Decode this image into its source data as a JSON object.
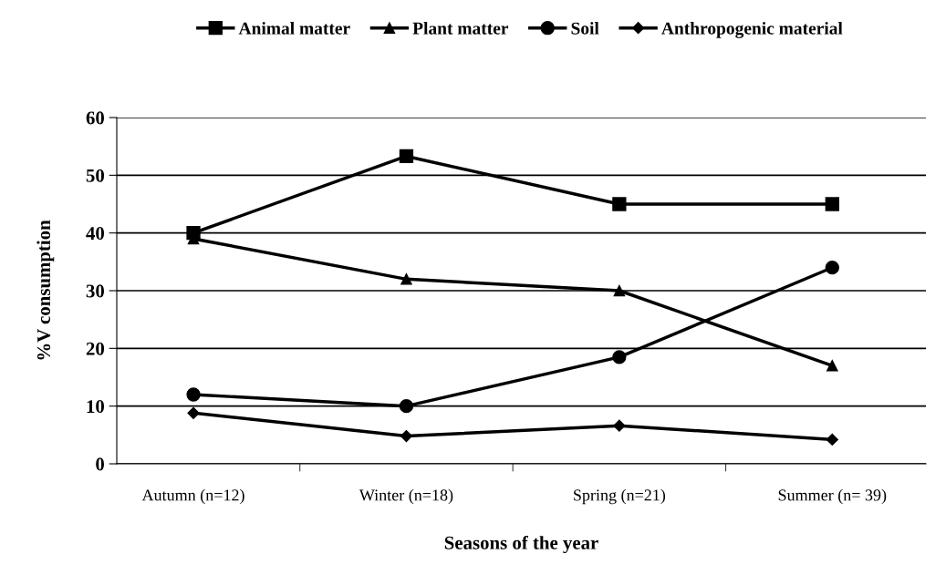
{
  "chart_data": {
    "type": "line",
    "xlabel": "Seasons of the year",
    "ylabel": "%V consumption",
    "categories": [
      "Autumn (n=12)",
      "Winter (n=18)",
      "Spring (n=21)",
      "Summer (n= 39)"
    ],
    "series": [
      {
        "name": "Animal matter",
        "color": "#000000",
        "marker": "square",
        "values": [
          40,
          53.3,
          45,
          45
        ]
      },
      {
        "name": "Plant matter",
        "color": "#000000",
        "marker": "triangle",
        "values": [
          39,
          32,
          30,
          17
        ]
      },
      {
        "name": "Soil",
        "color": "#000000",
        "marker": "circle",
        "values": [
          12,
          10,
          18.5,
          34
        ]
      },
      {
        "name": "Anthropogenic material",
        "color": "#000000",
        "marker": "diamond",
        "values": [
          8.8,
          4.8,
          6.6,
          4.2
        ]
      }
    ],
    "ylim": [
      0,
      60
    ],
    "yticks": [
      0,
      10,
      20,
      30,
      40,
      50,
      60
    ],
    "grid": "y",
    "legend": "top"
  }
}
